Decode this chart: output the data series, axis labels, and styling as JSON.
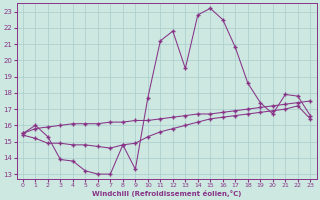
{
  "xlabel": "Windchill (Refroidissement éolien,°C)",
  "background_color": "#cce8e0",
  "grid_color": "#aacccc",
  "line_color": "#883388",
  "x_ticks": [
    0,
    1,
    2,
    3,
    4,
    5,
    6,
    7,
    8,
    9,
    10,
    11,
    12,
    13,
    14,
    15,
    16,
    17,
    18,
    19,
    20,
    21,
    22,
    23
  ],
  "y_ticks": [
    13,
    14,
    15,
    16,
    17,
    18,
    19,
    20,
    21,
    22,
    23
  ],
  "xlim": [
    -0.5,
    23.5
  ],
  "ylim": [
    12.7,
    23.5
  ],
  "series1_x": [
    0,
    1,
    2,
    3,
    4,
    5,
    6,
    7,
    8,
    9,
    10,
    11,
    12,
    13,
    14,
    15,
    16,
    17,
    18,
    19,
    20,
    21,
    22,
    23
  ],
  "series1_y": [
    15.5,
    16.0,
    15.3,
    13.9,
    13.8,
    13.2,
    13.0,
    13.0,
    14.8,
    13.3,
    17.7,
    21.2,
    21.8,
    19.5,
    22.8,
    23.2,
    22.5,
    20.8,
    18.6,
    17.4,
    16.7,
    17.9,
    17.8,
    16.6
  ],
  "series2_x": [
    0,
    1,
    2,
    3,
    4,
    5,
    6,
    7,
    8,
    9,
    10,
    11,
    12,
    13,
    14,
    15,
    16,
    17,
    18,
    19,
    20,
    21,
    22,
    23
  ],
  "series2_y": [
    15.5,
    15.8,
    15.9,
    16.0,
    16.1,
    16.1,
    16.1,
    16.2,
    16.2,
    16.3,
    16.3,
    16.4,
    16.5,
    16.6,
    16.7,
    16.7,
    16.8,
    16.9,
    17.0,
    17.1,
    17.2,
    17.3,
    17.4,
    17.5
  ],
  "series3_x": [
    0,
    1,
    2,
    3,
    4,
    5,
    6,
    7,
    8,
    9,
    10,
    11,
    12,
    13,
    14,
    15,
    16,
    17,
    18,
    19,
    20,
    21,
    22,
    23
  ],
  "series3_y": [
    15.4,
    15.2,
    14.9,
    14.9,
    14.8,
    14.8,
    14.7,
    14.6,
    14.8,
    14.9,
    15.3,
    15.6,
    15.8,
    16.0,
    16.2,
    16.4,
    16.5,
    16.6,
    16.7,
    16.8,
    16.9,
    17.0,
    17.2,
    16.4
  ]
}
